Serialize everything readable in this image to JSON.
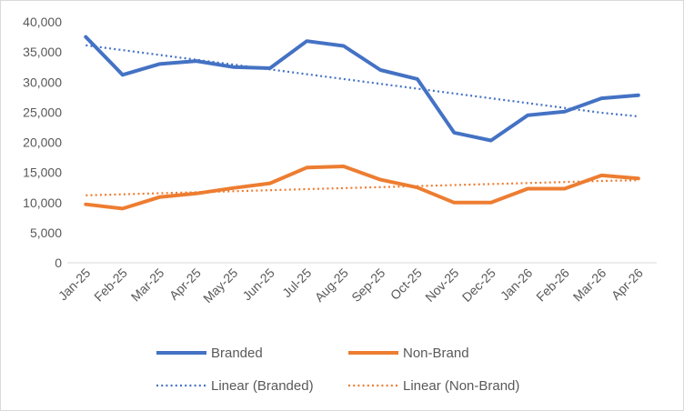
{
  "chart_data": {
    "type": "line",
    "title": "",
    "xlabel": "",
    "ylabel": "",
    "categories": [
      "Jan-25",
      "Feb-25",
      "Mar-25",
      "Apr-25",
      "May-25",
      "Jun-25",
      "Jul-25",
      "Aug-25",
      "Sep-25",
      "Oct-25",
      "Nov-25",
      "Dec-25",
      "Jan-26",
      "Feb-26",
      "Mar-26",
      "Apr-26"
    ],
    "ylim": [
      0,
      40000
    ],
    "yticks": [
      0,
      5000,
      10000,
      15000,
      20000,
      25000,
      30000,
      35000,
      40000
    ],
    "ytick_labels": [
      "0",
      "5,000",
      "10,000",
      "15,000",
      "20,000",
      "25,000",
      "30,000",
      "35,000",
      "40,000"
    ],
    "grid": false,
    "legend_position": "bottom",
    "series": [
      {
        "name": "Branded",
        "color": "#4472C4",
        "style": "solid",
        "values": [
          37500,
          31200,
          33000,
          33500,
          32500,
          32300,
          36800,
          36000,
          32000,
          30500,
          21600,
          20300,
          24500,
          25100,
          27300,
          27800
        ]
      },
      {
        "name": "Non-Brand",
        "color": "#ED7D31",
        "style": "solid",
        "values": [
          9700,
          9000,
          10900,
          11500,
          12400,
          13200,
          15800,
          16000,
          13800,
          12500,
          10000,
          10000,
          12300,
          12300,
          14500,
          14000
        ]
      },
      {
        "name": "Linear (Branded)",
        "color": "#4472C4",
        "style": "dotted",
        "trend_of": "Branded",
        "values": [
          36100,
          35300,
          34500,
          33700,
          32900,
          32100,
          31300,
          30500,
          29700,
          28900,
          28100,
          27300,
          26500,
          25700,
          24900,
          24300
        ]
      },
      {
        "name": "Linear (Non-Brand)",
        "color": "#ED7D31",
        "style": "dotted",
        "trend_of": "Non-Brand",
        "values": [
          11200,
          11370,
          11540,
          11710,
          11880,
          12050,
          12220,
          12390,
          12560,
          12730,
          12900,
          13070,
          13240,
          13410,
          13580,
          13700
        ]
      }
    ]
  }
}
